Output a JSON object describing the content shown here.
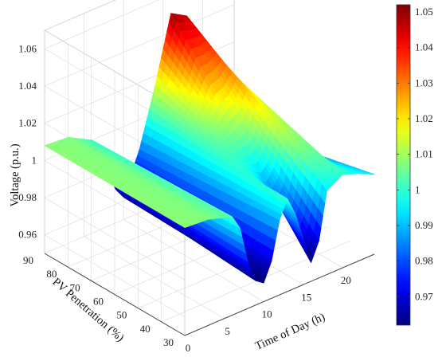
{
  "chart_data": {
    "type": "surface",
    "title": "",
    "xlabel": "Time of Day (h)",
    "ylabel": "PV Penetration (%)",
    "zlabel": "Voltage (p.u.)",
    "x_range": [
      0,
      24
    ],
    "y_range": [
      30,
      90
    ],
    "z_range": [
      0.95,
      1.07
    ],
    "x_ticks": [
      "0",
      "5",
      "10",
      "15",
      "20"
    ],
    "y_ticks": [
      "30",
      "40",
      "50",
      "60",
      "70",
      "80",
      "90"
    ],
    "z_ticks": [
      "0.96",
      "0.98",
      "1",
      "1.02",
      "1.04",
      "1.06"
    ],
    "grid": true,
    "colormap": "jet",
    "colorbar": {
      "range": [
        0.962,
        1.052
      ],
      "ticks": [
        "0.97",
        "0.98",
        "0.99",
        "1",
        "1.01",
        "1.02",
        "1.03",
        "1.04",
        "1.05"
      ]
    },
    "profile_at_90pct": {
      "x": [
        0,
        3,
        6,
        9,
        10,
        12,
        14,
        16,
        18,
        20,
        21,
        22,
        24
      ],
      "z": [
        1.008,
        1.007,
        1.0,
        0.968,
        0.962,
        0.984,
        1.015,
        1.05,
        1.045,
        1.025,
        1.0,
        0.982,
        0.975
      ]
    },
    "profile_at_30pct": {
      "x": [
        0,
        3,
        6,
        7,
        8,
        9,
        10,
        11,
        12,
        13,
        14,
        15,
        16,
        17,
        18,
        20,
        22,
        24
      ],
      "z": [
        1.008,
        1.007,
        1.003,
        0.995,
        0.975,
        0.963,
        0.96,
        0.97,
        0.99,
        1.0,
        0.99,
        0.975,
        0.96,
        0.97,
        0.995,
        1.0,
        0.997,
        0.993
      ]
    }
  }
}
